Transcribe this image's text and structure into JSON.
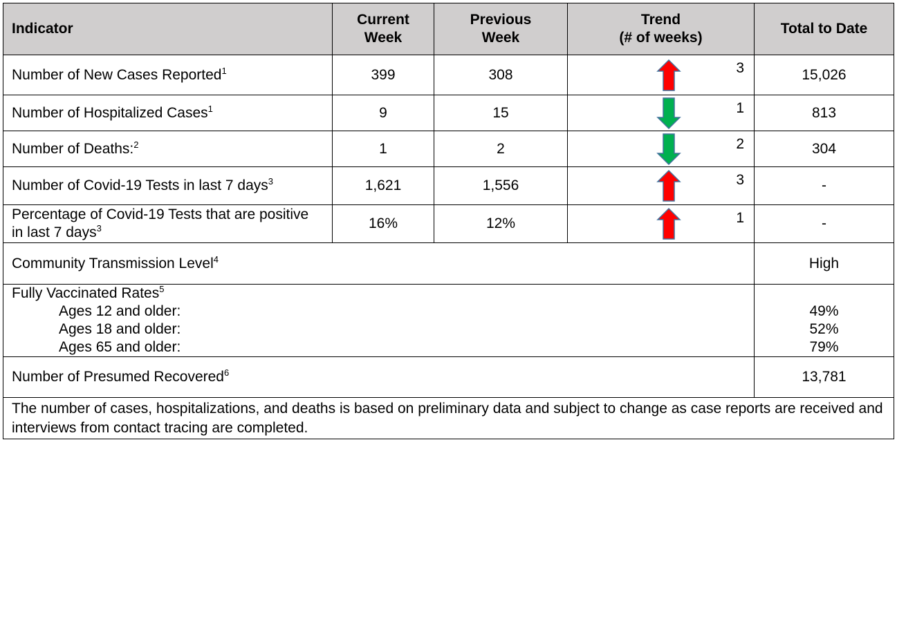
{
  "header": [
    [
      "Indicator"
    ],
    [
      "Current",
      "Week"
    ],
    [
      "Previous",
      "Week"
    ],
    [
      "Trend",
      "(# of weeks)"
    ],
    [
      "Total to Date"
    ]
  ],
  "rows": [
    {
      "indicator": "Number of New Cases Reported",
      "note": "1",
      "current": "399",
      "previous": "308",
      "trend": {
        "direction": "up",
        "weeks": "3"
      },
      "total": "15,026"
    },
    {
      "indicator": "Number of Hospitalized Cases",
      "note": "1",
      "current": "9",
      "previous": "15",
      "trend": {
        "direction": "down",
        "weeks": "1"
      },
      "total": "813"
    },
    {
      "indicator": "Number of Deaths:",
      "note": "2",
      "current": "1",
      "previous": "2",
      "trend": {
        "direction": "down",
        "weeks": "2"
      },
      "total": "304"
    },
    {
      "indicator": "Number of Covid-19 Tests in last 7 days",
      "note": "3",
      "current": "1,621",
      "previous": "1,556",
      "trend": {
        "direction": "up",
        "weeks": "3"
      },
      "total": "-"
    },
    {
      "indicator": "Percentage of Covid-19 Tests that are positive in last 7 days",
      "note": "3",
      "current": "16%",
      "previous": "12%",
      "trend": {
        "direction": "up",
        "weeks": "1"
      },
      "total": "-"
    }
  ],
  "transmission": {
    "label": "Community Transmission Level",
    "note": "4",
    "value": "High"
  },
  "vaccinated": {
    "label": "Fully Vaccinated Rates",
    "note": "5",
    "groups": [
      {
        "label": "Ages 12 and older:",
        "value": "49%"
      },
      {
        "label": "Ages 18 and older:",
        "value": "52%"
      },
      {
        "label": "Ages 65 and older:",
        "value": "79%"
      }
    ]
  },
  "recovered": {
    "label": "Number of Presumed Recovered",
    "note": "6",
    "value": "13,781"
  },
  "footnote": "The number of cases, hospitalizations, and deaths is based on preliminary data and subject to change as case reports are received and interviews from contact tracing are completed."
}
